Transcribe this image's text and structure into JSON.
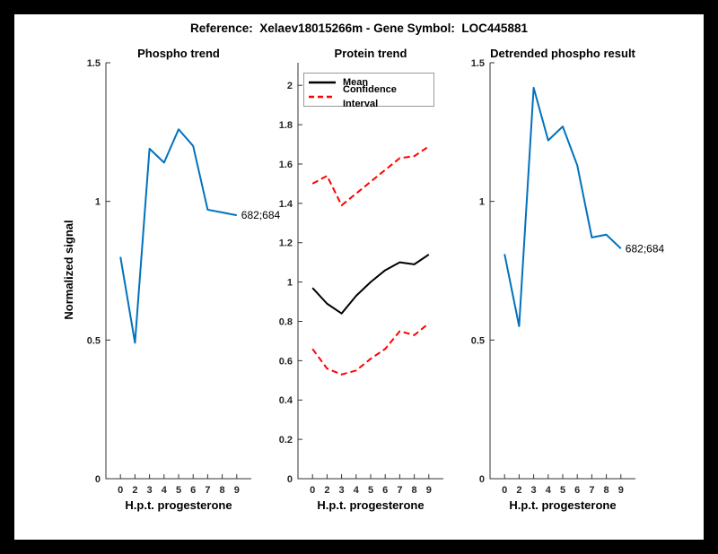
{
  "header": {
    "title": "Reference:  Xelaev18015266m - Gene Symbol:  LOC445881"
  },
  "colors": {
    "axis": "#333333",
    "blue": "#0072BD",
    "red": "#FF0000",
    "black": "#000000",
    "legend_border": "#999999",
    "background": "#000000",
    "figure_background": "#FFFFFF"
  },
  "chart_data": [
    {
      "type": "line",
      "title": "Phospho trend",
      "xlabel": "H.p.t. progesterone",
      "ylabel": "Normalized signal",
      "x": [
        0,
        2,
        3,
        4,
        5,
        6,
        7,
        8,
        9
      ],
      "x_tick_labels": [
        "0",
        "2",
        "3",
        "4",
        "5",
        "6",
        "7",
        "8",
        "9"
      ],
      "y_ticks": [
        0,
        0.5,
        1,
        1.5
      ],
      "y_tick_labels": [
        "0",
        "0.5",
        "1",
        "1.5"
      ],
      "xlim": [
        0,
        10
      ],
      "ylim": [
        0,
        1.5
      ],
      "grid": false,
      "series": [
        {
          "name": "phospho",
          "color": "#0072BD",
          "style": "solid",
          "values": [
            0.8,
            0.49,
            1.19,
            1.14,
            1.26,
            1.2,
            0.97,
            0.96,
            0.95
          ]
        }
      ],
      "end_label": "682;684"
    },
    {
      "type": "line",
      "title": "Protein trend",
      "xlabel": "H.p.t. progesterone",
      "ylabel": "",
      "x": [
        0,
        2,
        3,
        4,
        5,
        6,
        7,
        8,
        9
      ],
      "x_tick_labels": [
        "0",
        "2",
        "3",
        "4",
        "5",
        "6",
        "7",
        "8",
        "9"
      ],
      "y_ticks": [
        0,
        0.2,
        0.4,
        0.6,
        0.8,
        1,
        1.2,
        1.4,
        1.6,
        1.8,
        2
      ],
      "y_tick_labels": [
        "0",
        "0.2",
        "0.4",
        "0.6",
        "0.8",
        "1",
        "1.2",
        "1.4",
        "1.6",
        "1.8",
        "2"
      ],
      "xlim": [
        0,
        10
      ],
      "ylim": [
        0,
        2.115
      ],
      "grid": false,
      "legend": [
        "Mean",
        "Confidence Interval"
      ],
      "legend_position": "northwest",
      "series": [
        {
          "name": "mean",
          "color": "#000000",
          "style": "solid",
          "values": [
            0.97,
            0.89,
            0.84,
            0.93,
            1.0,
            1.06,
            1.1,
            1.09,
            1.14
          ]
        },
        {
          "name": "ci-upper",
          "color": "#FF0000",
          "style": "dashed",
          "values": [
            1.5,
            1.54,
            1.39,
            1.45,
            1.51,
            1.57,
            1.63,
            1.64,
            1.69
          ]
        },
        {
          "name": "ci-lower",
          "color": "#FF0000",
          "style": "dashed",
          "values": [
            0.66,
            0.56,
            0.53,
            0.55,
            0.61,
            0.66,
            0.75,
            0.73,
            0.79
          ]
        }
      ]
    },
    {
      "type": "line",
      "title": "Detrended phospho result",
      "xlabel": "H.p.t. progesterone",
      "ylabel": "",
      "x": [
        0,
        2,
        3,
        4,
        5,
        6,
        7,
        8,
        9
      ],
      "x_tick_labels": [
        "0",
        "2",
        "3",
        "4",
        "5",
        "6",
        "7",
        "8",
        "9"
      ],
      "y_ticks": [
        0,
        0.5,
        1,
        1.5
      ],
      "y_tick_labels": [
        "0",
        "0.5",
        "1",
        "1.5"
      ],
      "xlim": [
        0,
        10
      ],
      "ylim": [
        0,
        1.5
      ],
      "grid": false,
      "series": [
        {
          "name": "detrended",
          "color": "#0072BD",
          "style": "solid",
          "values": [
            0.81,
            0.55,
            1.41,
            1.22,
            1.27,
            1.13,
            0.87,
            0.88,
            0.83
          ]
        }
      ],
      "end_label": "682;684"
    }
  ]
}
